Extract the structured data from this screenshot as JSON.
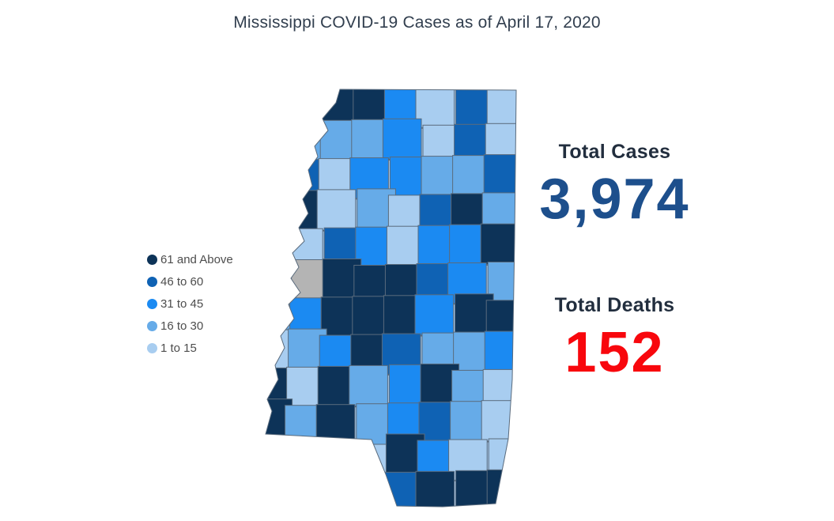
{
  "title": "Mississippi COVID-19 Cases as of April 17, 2020",
  "legend": {
    "items": [
      {
        "label": "61 and Above",
        "key": "D",
        "color": "#0d3358"
      },
      {
        "label": "46 to 60",
        "key": "H",
        "color": "#0f62b4"
      },
      {
        "label": "31 to 45",
        "key": "M",
        "color": "#1b8af2"
      },
      {
        "label": "16 to 30",
        "key": "L",
        "color": "#66abe8"
      },
      {
        "label": "1 to 15",
        "key": "X",
        "color": "#a8cdf0"
      }
    ],
    "no_data": {
      "key": "G",
      "color": "#b4b4b4"
    }
  },
  "stats": {
    "cases": {
      "label": "Total Cases",
      "value": "3,974",
      "value_color": "#1d4f8c"
    },
    "deaths": {
      "label": "Total Deaths",
      "value": "152",
      "value_color": "#f8070d"
    }
  },
  "map": {
    "name": "Mississippi counties choropleth",
    "border_color": "#5a6b7d",
    "grid": [
      "..DDMXHX",
      ".LLLMXHX",
      ".HXMMLLH",
      ".DXLXHDL",
      "DXHMXMMD",
      ".GDDDHML",
      "LMDDDMDD",
      "XLMDHLLM",
      "DXDLMDLX",
      "DLDLMHLX",
      "....DMXX",
      "....HDDD"
    ]
  },
  "chart_data": {
    "type": "heatmap",
    "subtype": "choropleth",
    "region": "Mississippi, USA — counties",
    "title": "Mississippi COVID-19 Cases as of April 17, 2020",
    "bins": [
      "1 to 15",
      "16 to 30",
      "31 to 45",
      "46 to 60",
      "61 and Above"
    ],
    "bin_colors": [
      "#a8cdf0",
      "#66abe8",
      "#1b8af2",
      "#0f62b4",
      "#0d3358"
    ],
    "no_data_color": "#b4b4b4",
    "legend_position": "left",
    "totals": {
      "total_cases": 3974,
      "total_deaths": 152
    },
    "county_grid_rows": [
      "..DDMXHX",
      ".LLLMXHX",
      ".HXMMLLH",
      ".DXLXHDL",
      "DXHMXMMD",
      ".GDDDHML",
      "LMDDDMDD",
      "XLMDHLLM",
      "DXDLMDLX",
      "DLDLMHLX",
      "....DMXX",
      "....HDDD"
    ],
    "grid_key": {
      "D": "61 and Above",
      "H": "46 to 60",
      "M": "31 to 45",
      "L": "16 to 30",
      "X": "1 to 15",
      "G": "no data",
      ".": "outside state"
    }
  }
}
